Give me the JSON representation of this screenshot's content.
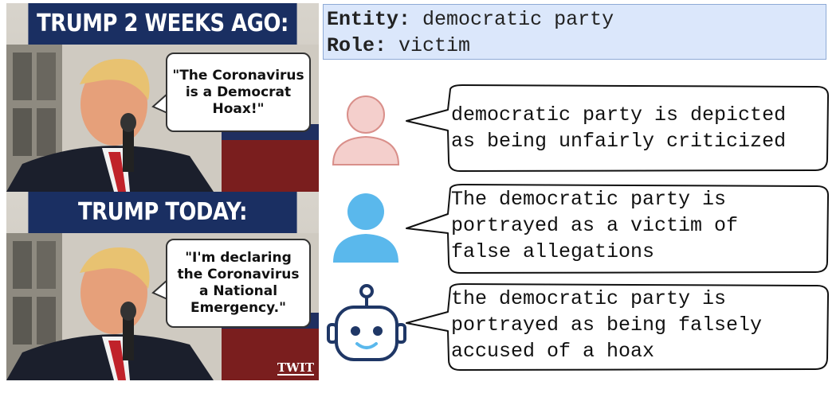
{
  "meme": {
    "panel1_header": "TRUMP 2 WEEKS AGO:",
    "panel1_quote": "\"The Coronavirus is a Democrat Hoax!\"",
    "panel2_header": "TRUMP TODAY:",
    "panel2_quote": "\"I'm declaring the Coronavirus a National Emergency.\"",
    "watermark": "TWIT"
  },
  "entity": {
    "entity_label": "Entity:",
    "entity_value": "democratic party",
    "role_label": "Role:",
    "role_value": "victim"
  },
  "responses": [
    {
      "avatar": "person-pink-icon",
      "lines": [
        "democratic party is depicted",
        "as being unfairly criticized"
      ]
    },
    {
      "avatar": "person-blue-icon",
      "lines": [
        "The democratic party is",
        "portrayed as a victim of",
        "false allegations"
      ]
    },
    {
      "avatar": "robot-icon",
      "lines": [
        "the democratic party is",
        "portrayed as being falsely",
        "accused of a hoax"
      ]
    }
  ],
  "colors": {
    "meme_header": "#1a2f62",
    "entity_bg": "#dbe7fb",
    "pink_avatar": "#f4cfcc",
    "blue_avatar": "#5ab8ec",
    "robot": "#1f3766"
  }
}
